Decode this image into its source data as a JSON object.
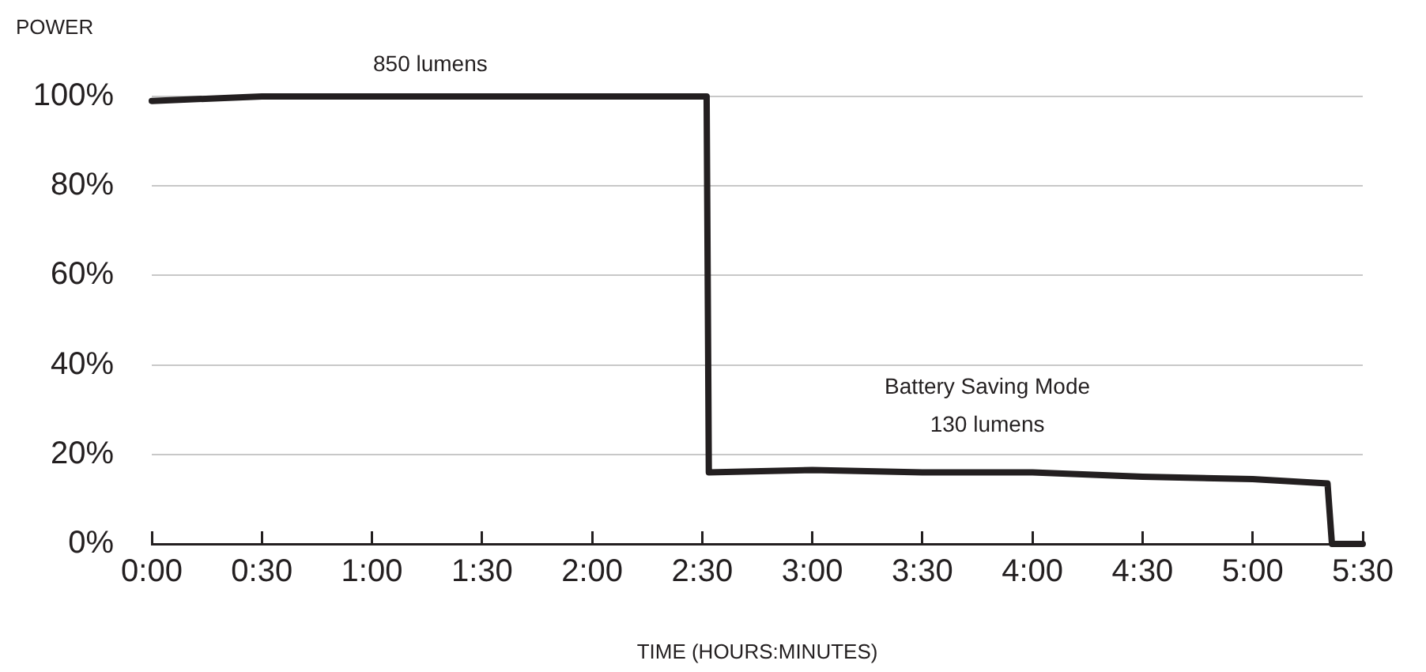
{
  "chart_data": {
    "type": "line",
    "ylabel": "POWER",
    "xlabel": "TIME (HOURS:MINUTES)",
    "x": [
      0,
      0.5,
      1.0,
      1.3,
      1.5,
      1.9,
      2.0,
      2.5,
      2.52,
      2.53,
      3.0,
      3.5,
      4.0,
      4.5,
      5.0,
      5.34,
      5.36,
      5.5
    ],
    "series": [
      {
        "color": "#231f20",
        "values": [
          99,
          100,
          100,
          100,
          100,
          100,
          100,
          100,
          100,
          16,
          16.5,
          16,
          16,
          15,
          14.5,
          13.5,
          0,
          0
        ]
      }
    ],
    "xlim": [
      0,
      5.5
    ],
    "xticks": [
      {
        "value": 0,
        "label": "0:00"
      },
      {
        "value": 0.5,
        "label": "0:30"
      },
      {
        "value": 1,
        "label": "1:00"
      },
      {
        "value": 1.5,
        "label": "1:30"
      },
      {
        "value": 2,
        "label": "2:00"
      },
      {
        "value": 2.5,
        "label": "2:30"
      },
      {
        "value": 3,
        "label": "3:00"
      },
      {
        "value": 3.5,
        "label": "3:30"
      },
      {
        "value": 4,
        "label": "4:00"
      },
      {
        "value": 4.5,
        "label": "4:30"
      },
      {
        "value": 5,
        "label": "5:00"
      },
      {
        "value": 5.5,
        "label": "5:30"
      }
    ],
    "ylim": [
      0,
      100
    ],
    "yticks": [
      {
        "value": 0,
        "label": "0%"
      },
      {
        "value": 20,
        "label": "20%"
      },
      {
        "value": 40,
        "label": "40%"
      },
      {
        "value": 60,
        "label": "60%"
      },
      {
        "value": 80,
        "label": "80%"
      },
      {
        "value": 100,
        "label": "100%"
      }
    ],
    "grid": "y",
    "legend": false,
    "marker": "none",
    "line_style": "solid",
    "annotations": [
      "850 lumens",
      "Battery Saving Mode\n130 lumens"
    ]
  }
}
